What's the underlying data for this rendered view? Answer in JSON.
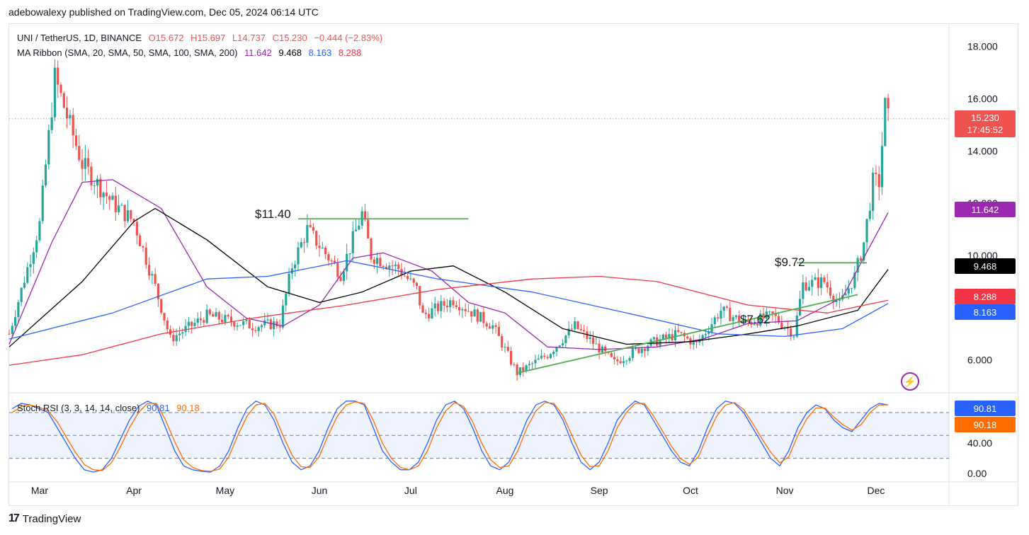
{
  "header": {
    "published": "adebowalexy published on TradingView.com, Dec 05, 2024 06:14 UTC"
  },
  "legend": {
    "symbol": "UNI / TetherUS, 1D, BINANCE",
    "open": "O15.672",
    "high": "H15.697",
    "low": "L14.737",
    "close": "C15.230",
    "change": "−0.444 (−2.83%)",
    "ma_title": "MA Ribbon (SMA, 20, SMA, 50, SMA, 100, SMA, 200)",
    "ma20": "11.642",
    "ma50": "9.468",
    "ma100": "8.163",
    "ma200": "8.288",
    "rsi_title": "Stoch RSI (3, 3, 14, 14, close)",
    "rsi_k": "90.81",
    "rsi_d": "90.18"
  },
  "price_tags": {
    "last_price": "15.230",
    "countdown": "17:45:52",
    "ma20": "11.642",
    "ma50": "9.468",
    "ma200": "8.288",
    "ma100": "8.163",
    "rsi_k": "90.81",
    "rsi_d": "90.18"
  },
  "annotations": {
    "level1": "$11.40",
    "level2": "$9.72",
    "level3": "$7.62"
  },
  "footer": {
    "brand": "TradingView"
  },
  "colors": {
    "up": "#26a69a",
    "down": "#ef5350",
    "ma20": "#9c27b0",
    "ma50": "#000000",
    "ma100": "#2962ff",
    "ma200": "#f23645",
    "rsi_k": "#2962ff",
    "rsi_d": "#ff6d00",
    "trend": "#4caf50"
  },
  "chart_data": [
    {
      "type": "candlestick",
      "title": "UNI / TetherUS, 1D, BINANCE",
      "y_ticks": [
        "18.000",
        "16.000",
        "14.000",
        "12.000",
        "10.000",
        "6.000"
      ],
      "ylim": [
        4.8,
        18.8
      ],
      "x_ticks": [
        "Mar",
        "Apr",
        "May",
        "Jun",
        "Jul",
        "Aug",
        "Sep",
        "Oct",
        "Nov",
        "Dec"
      ],
      "x_range": [
        "2024-02-20",
        "2024-12-25"
      ],
      "key_prices": [
        {
          "date": "2024-02-20",
          "price": 7.0
        },
        {
          "date": "2024-03-01",
          "price": 11.2
        },
        {
          "date": "2024-03-06",
          "price": 16.8
        },
        {
          "date": "2024-03-15",
          "price": 13.5
        },
        {
          "date": "2024-03-25",
          "price": 12.0
        },
        {
          "date": "2024-04-01",
          "price": 11.3
        },
        {
          "date": "2024-04-08",
          "price": 8.8
        },
        {
          "date": "2024-04-13",
          "price": 6.8
        },
        {
          "date": "2024-04-25",
          "price": 7.7
        },
        {
          "date": "2024-05-10",
          "price": 7.3
        },
        {
          "date": "2024-05-19",
          "price": 7.4
        },
        {
          "date": "2024-05-23",
          "price": 9.6
        },
        {
          "date": "2024-05-28",
          "price": 11.0
        },
        {
          "date": "2024-06-08",
          "price": 9.3
        },
        {
          "date": "2024-06-15",
          "price": 11.6
        },
        {
          "date": "2024-06-18",
          "price": 10.0
        },
        {
          "date": "2024-06-27",
          "price": 9.5
        },
        {
          "date": "2024-07-03",
          "price": 8.7
        },
        {
          "date": "2024-07-05",
          "price": 7.7
        },
        {
          "date": "2024-07-15",
          "price": 8.3
        },
        {
          "date": "2024-07-28",
          "price": 7.3
        },
        {
          "date": "2024-08-05",
          "price": 5.5
        },
        {
          "date": "2024-08-15",
          "price": 6.2
        },
        {
          "date": "2024-08-24",
          "price": 7.3
        },
        {
          "date": "2024-09-06",
          "price": 5.9
        },
        {
          "date": "2024-09-17",
          "price": 6.6
        },
        {
          "date": "2024-09-27",
          "price": 7.0
        },
        {
          "date": "2024-10-03",
          "price": 6.6
        },
        {
          "date": "2024-10-11",
          "price": 7.9
        },
        {
          "date": "2024-10-19",
          "price": 7.4
        },
        {
          "date": "2024-10-28",
          "price": 7.7
        },
        {
          "date": "2024-11-04",
          "price": 7.0
        },
        {
          "date": "2024-11-07",
          "price": 8.9
        },
        {
          "date": "2024-11-14",
          "price": 9.0
        },
        {
          "date": "2024-11-19",
          "price": 8.1
        },
        {
          "date": "2024-11-24",
          "price": 9.2
        },
        {
          "date": "2024-11-27",
          "price": 10.5
        },
        {
          "date": "2024-11-30",
          "price": 12.8
        },
        {
          "date": "2024-12-02",
          "price": 12.8
        },
        {
          "date": "2024-12-04",
          "price": 15.7
        },
        {
          "date": "2024-12-05",
          "price": 15.23
        }
      ],
      "ma_series": [
        {
          "name": "SMA 20",
          "points": [
            [
              "2024-02-20",
              6.6
            ],
            [
              "2024-03-05",
              10.5
            ],
            [
              "2024-03-15",
              12.8
            ],
            [
              "2024-03-25",
              12.9
            ],
            [
              "2024-04-10",
              11.8
            ],
            [
              "2024-04-25",
              8.8
            ],
            [
              "2024-05-08",
              7.6
            ],
            [
              "2024-05-20",
              7.3
            ],
            [
              "2024-06-01",
              8.1
            ],
            [
              "2024-06-12",
              9.9
            ],
            [
              "2024-06-22",
              10.1
            ],
            [
              "2024-07-08",
              9.4
            ],
            [
              "2024-07-20",
              8.2
            ],
            [
              "2024-08-01",
              7.8
            ],
            [
              "2024-08-15",
              6.5
            ],
            [
              "2024-09-01",
              6.4
            ],
            [
              "2024-09-20",
              6.5
            ],
            [
              "2024-10-05",
              6.8
            ],
            [
              "2024-10-20",
              7.4
            ],
            [
              "2024-11-05",
              7.5
            ],
            [
              "2024-11-20",
              8.4
            ],
            [
              "2024-12-05",
              11.642
            ]
          ]
        },
        {
          "name": "SMA 50",
          "points": [
            [
              "2024-02-20",
              6.5
            ],
            [
              "2024-03-15",
              9.0
            ],
            [
              "2024-04-01",
              11.3
            ],
            [
              "2024-04-08",
              11.8
            ],
            [
              "2024-04-25",
              10.6
            ],
            [
              "2024-05-15",
              8.8
            ],
            [
              "2024-06-01",
              8.2
            ],
            [
              "2024-06-15",
              8.6
            ],
            [
              "2024-07-01",
              9.4
            ],
            [
              "2024-07-15",
              9.6
            ],
            [
              "2024-08-01",
              8.6
            ],
            [
              "2024-08-20",
              7.2
            ],
            [
              "2024-09-10",
              6.6
            ],
            [
              "2024-10-01",
              6.7
            ],
            [
              "2024-10-20",
              7.0
            ],
            [
              "2024-11-05",
              7.3
            ],
            [
              "2024-11-25",
              7.9
            ],
            [
              "2024-12-05",
              9.468
            ]
          ]
        },
        {
          "name": "SMA 100",
          "points": [
            [
              "2024-02-20",
              6.8
            ],
            [
              "2024-03-25",
              7.8
            ],
            [
              "2024-04-25",
              9.1
            ],
            [
              "2024-05-15",
              9.2
            ],
            [
              "2024-06-10",
              9.8
            ],
            [
              "2024-07-10",
              9.1
            ],
            [
              "2024-08-10",
              8.6
            ],
            [
              "2024-09-10",
              7.8
            ],
            [
              "2024-10-10",
              7.0
            ],
            [
              "2024-11-01",
              6.9
            ],
            [
              "2024-11-20",
              7.2
            ],
            [
              "2024-12-05",
              8.163
            ]
          ]
        },
        {
          "name": "SMA 200",
          "points": [
            [
              "2024-02-20",
              5.8
            ],
            [
              "2024-03-15",
              6.2
            ],
            [
              "2024-04-10",
              7.0
            ],
            [
              "2024-05-10",
              7.6
            ],
            [
              "2024-06-10",
              8.1
            ],
            [
              "2024-07-10",
              8.7
            ],
            [
              "2024-08-10",
              9.1
            ],
            [
              "2024-09-01",
              9.2
            ],
            [
              "2024-09-20",
              9.0
            ],
            [
              "2024-10-20",
              8.1
            ],
            [
              "2024-11-15",
              7.8
            ],
            [
              "2024-12-05",
              8.288
            ]
          ]
        }
      ]
    },
    {
      "type": "line",
      "title": "Stoch RSI (3, 3, 14, 14, close)",
      "y_ticks": [
        "40.00",
        "0.00"
      ],
      "ylim": [
        -10,
        105
      ],
      "bands": [
        80,
        50,
        20
      ],
      "series": [
        {
          "name": "K",
          "values": [
            85,
            92,
            90,
            85,
            80,
            60,
            40,
            20,
            5,
            2,
            5,
            20,
            45,
            70,
            88,
            95,
            90,
            60,
            30,
            10,
            5,
            3,
            2,
            10,
            30,
            60,
            85,
            95,
            90,
            70,
            40,
            15,
            5,
            10,
            30,
            60,
            85,
            95,
            95,
            90,
            60,
            30,
            15,
            5,
            5,
            15,
            40,
            70,
            90,
            95,
            85,
            60,
            30,
            10,
            5,
            15,
            40,
            70,
            90,
            95,
            90,
            70,
            40,
            15,
            5,
            15,
            40,
            70,
            85,
            95,
            90,
            70,
            50,
            30,
            15,
            10,
            30,
            60,
            85,
            95,
            92,
            80,
            60,
            40,
            20,
            10,
            30,
            60,
            80,
            90,
            85,
            70,
            60,
            55,
            70,
            85,
            92,
            90
          ]
        },
        {
          "name": "D",
          "values": [
            80,
            88,
            90,
            87,
            82,
            68,
            48,
            28,
            12,
            5,
            4,
            14,
            35,
            60,
            80,
            92,
            92,
            70,
            42,
            18,
            8,
            4,
            3,
            6,
            22,
            50,
            75,
            90,
            92,
            78,
            50,
            24,
            9,
            8,
            22,
            50,
            75,
            90,
            94,
            92,
            70,
            40,
            20,
            8,
            5,
            10,
            30,
            60,
            82,
            93,
            88,
            68,
            40,
            18,
            8,
            10,
            30,
            60,
            82,
            93,
            92,
            76,
            50,
            24,
            9,
            10,
            30,
            60,
            80,
            92,
            92,
            76,
            56,
            36,
            20,
            12,
            22,
            50,
            75,
            90,
            93,
            84,
            66,
            46,
            28,
            14,
            22,
            50,
            72,
            86,
            86,
            74,
            64,
            57,
            64,
            80,
            90,
            90
          ]
        }
      ]
    }
  ]
}
